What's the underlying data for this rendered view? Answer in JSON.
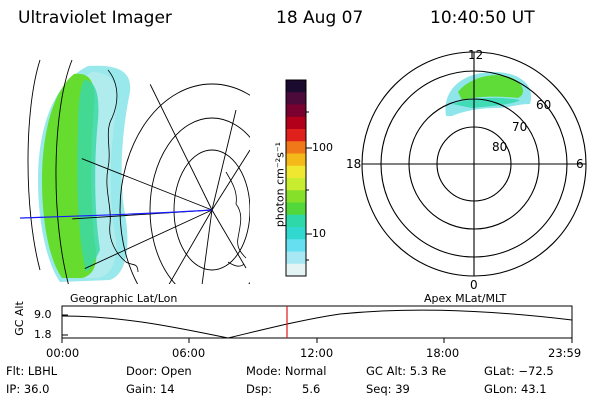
{
  "header": {
    "instrument": "Ultraviolet Imager",
    "date": "18 Aug 07",
    "time": "10:40:50 UT"
  },
  "colorbar": {
    "unit_label": "photon cm⁻²s⁻¹",
    "ticks": [
      "100",
      "10"
    ],
    "scale": "log",
    "colors": [
      "#1a0a2e",
      "#4b0a3a",
      "#7a0030",
      "#b3001a",
      "#e0201a",
      "#f07818",
      "#f4b818",
      "#f0e830",
      "#c8ec30",
      "#86e02a",
      "#52d83a",
      "#2ed8a8",
      "#30d8d0",
      "#66dff0",
      "#a8e8f4",
      "#e4f4f4"
    ]
  },
  "polar_plot": {
    "labels": {
      "top": "12",
      "left": "18",
      "right": "6",
      "bottom": "0"
    },
    "lat_labels": [
      "60",
      "70",
      "80"
    ]
  },
  "map_labels": {
    "geo": "Geographic Lat/Lon",
    "apex": "Apex MLat/MLT"
  },
  "timeline": {
    "axis_label": "GC Alt",
    "y_ticks": [
      "9.0",
      "1.8"
    ],
    "x_ticks": [
      "00:00",
      "06:00",
      "12:00",
      "18:00",
      "23:59"
    ]
  },
  "footer": {
    "row1": {
      "filter": "Flt: LBHL",
      "door": "Door: Open",
      "mode": "Mode: Normal",
      "gc_alt": "GC Alt: 5.3 Re",
      "glat": "GLat: −72.5"
    },
    "row2": {
      "ip": "IP: 36.0",
      "gain": "Gain: 14",
      "dsp_label": "Dsp:",
      "dsp_value": "5.6",
      "seq": "Seq: 39",
      "glon": "GLon:  43.1"
    }
  }
}
